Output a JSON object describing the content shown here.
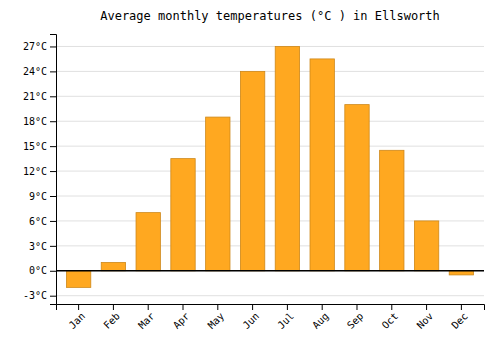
{
  "chart_data": {
    "type": "bar",
    "title": "Average monthly temperatures (°C ) in Ellsworth",
    "categories": [
      "Jan",
      "Feb",
      "Mar",
      "Apr",
      "May",
      "Jun",
      "Jul",
      "Aug",
      "Sep",
      "Oct",
      "Nov",
      "Dec"
    ],
    "values": [
      -2.0,
      1.0,
      7.0,
      13.5,
      18.5,
      24.0,
      27.0,
      25.5,
      20.0,
      14.5,
      6.0,
      -0.5
    ],
    "color": "#FFA820",
    "ylim": [
      -4,
      28.5
    ],
    "yticks": [
      {
        "value": -3,
        "label": "-3°C"
      },
      {
        "value": 0,
        "label": "0°C"
      },
      {
        "value": 3,
        "label": "3°C"
      },
      {
        "value": 6,
        "label": "6°C"
      },
      {
        "value": 9,
        "label": "9°C"
      },
      {
        "value": 12,
        "label": "12°C"
      },
      {
        "value": 15,
        "label": "15°C"
      },
      {
        "value": 18,
        "label": "18°C"
      },
      {
        "value": 21,
        "label": "21°C"
      },
      {
        "value": 24,
        "label": "24°C"
      },
      {
        "value": 27,
        "label": "27°C"
      }
    ],
    "grid": true
  }
}
